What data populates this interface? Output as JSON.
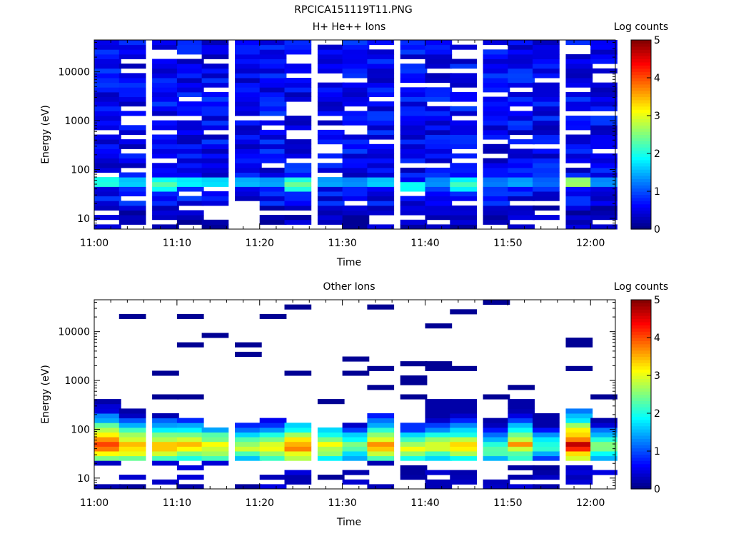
{
  "page_title": "RPCICA151119T11.PNG",
  "colors": {
    "axis": "#000000",
    "background": "#ffffff",
    "colormap": [
      "#00008f",
      "#0000ff",
      "#0080ff",
      "#00ffff",
      "#80ff80",
      "#ffff00",
      "#ff8000",
      "#ff0000",
      "#800000"
    ]
  },
  "chart_data": [
    {
      "type": "heatmap",
      "title": "H+ He++ Ions",
      "xlabel": "Time",
      "ylabel": "Energy (eV)",
      "x_ticks": [
        "11:00",
        "11:10",
        "11:20",
        "11:30",
        "11:40",
        "11:50",
        "12:00"
      ],
      "xlim": [
        "11:00",
        "12:03"
      ],
      "y_scale": "log",
      "y_ticks": [
        "10",
        "100",
        "1000",
        "10000"
      ],
      "ylim": [
        6,
        45000
      ],
      "colorbar": {
        "label": "Log counts",
        "ticks": [
          "0",
          "1",
          "2",
          "3",
          "4",
          "5"
        ],
        "range": [
          0,
          5
        ]
      },
      "time_bins": [
        "11:00",
        "11:03",
        "11:07",
        "11:10",
        "11:13",
        "11:17",
        "11:20",
        "11:23",
        "11:27",
        "11:30",
        "11:33",
        "11:37",
        "11:40",
        "11:43",
        "11:47",
        "11:50",
        "11:53",
        "11:57",
        "12:00"
      ],
      "spectra": [
        {
          "low_energy_peak_eV": 55,
          "peak_log_counts": 2.2
        },
        {
          "low_energy_peak_eV": 55,
          "peak_log_counts": 1.8
        },
        {
          "low_energy_peak_eV": 50,
          "peak_log_counts": 2.3
        },
        {
          "low_energy_peak_eV": 55,
          "peak_log_counts": 2.0
        },
        {
          "low_energy_peak_eV": 55,
          "peak_log_counts": 1.9
        },
        {
          "low_energy_peak_eV": 55,
          "peak_log_counts": 1.7
        },
        {
          "low_energy_peak_eV": 55,
          "peak_log_counts": 1.6
        },
        {
          "low_energy_peak_eV": 50,
          "peak_log_counts": 2.4
        },
        {
          "low_energy_peak_eV": 55,
          "peak_log_counts": 1.6
        },
        {
          "low_energy_peak_eV": 55,
          "peak_log_counts": 1.5
        },
        {
          "low_energy_peak_eV": 55,
          "peak_log_counts": 1.8
        },
        {
          "low_energy_peak_eV": 45,
          "peak_log_counts": 2.1
        },
        {
          "low_energy_peak_eV": 55,
          "peak_log_counts": 1.5
        },
        {
          "low_energy_peak_eV": 50,
          "peak_log_counts": 2.2
        },
        {
          "low_energy_peak_eV": 55,
          "peak_log_counts": 1.4
        },
        {
          "low_energy_peak_eV": 55,
          "peak_log_counts": 1.6
        },
        {
          "low_energy_peak_eV": 55,
          "peak_log_counts": 1.3
        },
        {
          "low_energy_peak_eV": 55,
          "peak_log_counts": 2.8
        },
        {
          "low_energy_peak_eV": 55,
          "peak_log_counts": 1.5
        }
      ]
    },
    {
      "type": "heatmap",
      "title": "Other Ions",
      "xlabel": "Time",
      "ylabel": "Energy (eV)",
      "x_ticks": [
        "11:00",
        "11:10",
        "11:20",
        "11:30",
        "11:40",
        "11:50",
        "12:00"
      ],
      "xlim": [
        "11:00",
        "12:03"
      ],
      "y_scale": "log",
      "y_ticks": [
        "10",
        "100",
        "1000",
        "10000"
      ],
      "ylim": [
        6,
        45000
      ],
      "colorbar": {
        "label": "Log counts",
        "ticks": [
          "0",
          "1",
          "2",
          "3",
          "4",
          "5"
        ],
        "range": [
          0,
          5
        ]
      },
      "time_bins": [
        "11:00",
        "11:03",
        "11:07",
        "11:10",
        "11:13",
        "11:17",
        "11:20",
        "11:23",
        "11:27",
        "11:30",
        "11:33",
        "11:37",
        "11:40",
        "11:43",
        "11:47",
        "11:50",
        "11:53",
        "11:57",
        "12:00"
      ],
      "spectra": [
        {
          "peak_eV": 50,
          "peak_log_counts": 4.3,
          "upper_eV": 400
        },
        {
          "peak_eV": 45,
          "peak_log_counts": 3.9,
          "upper_eV": 250
        },
        {
          "peak_eV": 45,
          "peak_log_counts": 3.8,
          "upper_eV": 200
        },
        {
          "peak_eV": 45,
          "peak_log_counts": 3.7,
          "upper_eV": 180
        },
        {
          "peak_eV": 45,
          "peak_log_counts": 3.6,
          "upper_eV": 120
        },
        {
          "peak_eV": 45,
          "peak_log_counts": 3.2,
          "upper_eV": 150
        },
        {
          "peak_eV": 45,
          "peak_log_counts": 3.5,
          "upper_eV": 160
        },
        {
          "peak_eV": 45,
          "peak_log_counts": 4.0,
          "upper_eV": 150
        },
        {
          "peak_eV": 45,
          "peak_log_counts": 3.4,
          "upper_eV": 120
        },
        {
          "peak_eV": 45,
          "peak_log_counts": 2.9,
          "upper_eV": 140
        },
        {
          "peak_eV": 45,
          "peak_log_counts": 3.9,
          "upper_eV": 220
        },
        {
          "peak_eV": 40,
          "peak_log_counts": 3.3,
          "upper_eV": 150
        },
        {
          "peak_eV": 45,
          "peak_log_counts": 3.4,
          "upper_eV": 380
        },
        {
          "peak_eV": 45,
          "peak_log_counts": 3.6,
          "upper_eV": 450
        },
        {
          "peak_eV": 40,
          "peak_log_counts": 2.8,
          "upper_eV": 160
        },
        {
          "peak_eV": 50,
          "peak_log_counts": 3.7,
          "upper_eV": 420
        },
        {
          "peak_eV": 45,
          "peak_log_counts": 2.6,
          "upper_eV": 230
        },
        {
          "peak_eV": 50,
          "peak_log_counts": 4.7,
          "upper_eV": 250
        },
        {
          "peak_eV": 45,
          "peak_log_counts": 3.0,
          "upper_eV": 180
        }
      ]
    }
  ]
}
